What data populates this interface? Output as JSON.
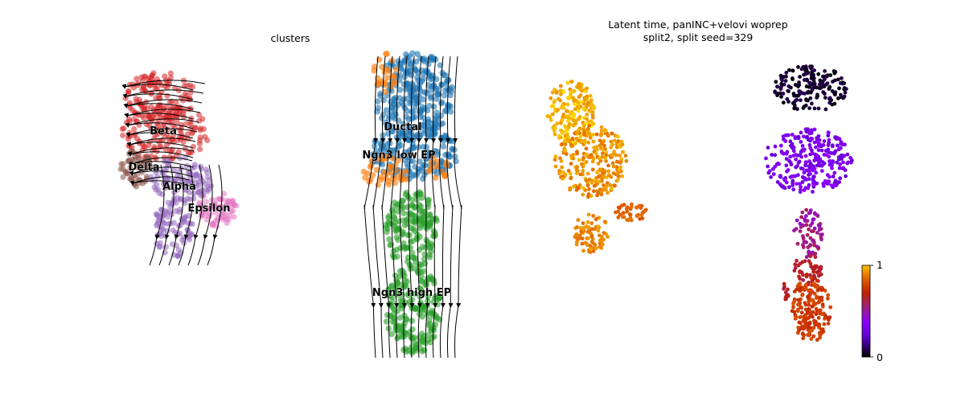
{
  "chart_data": [
    {
      "type": "scatter",
      "title": "clusters",
      "colors": {
        "Beta": "#d62728",
        "Delta": "#8c564b",
        "Alpha": "#9467bd",
        "Epsilon": "#e377c2",
        "Ductal": "#1f77b4",
        "Ngn3 low EP": "#ff7f0e",
        "Ngn3 high EP": "#2ca02c"
      },
      "cluster_labels": [
        "Beta",
        "Delta",
        "Alpha",
        "Epsilon",
        "Ductal",
        "Ngn3 low EP",
        "Ngn3 high EP"
      ],
      "streamlines": true,
      "grid": false,
      "axes_visible": false
    },
    {
      "type": "scatter",
      "title_lines": [
        "Latent time, panINC+velovi woprep",
        "split2, split seed=329"
      ],
      "colormap": "gnuplot",
      "colormap_stops": [
        "#000000",
        "#7300e0",
        "#9c1a8c",
        "#c02000",
        "#d64000",
        "#e0a000",
        "#ffff00"
      ],
      "colorbar": {
        "min": 0,
        "max": 1,
        "ticks": [
          "1",
          "0"
        ]
      },
      "grid": false,
      "axes_visible": false
    }
  ]
}
